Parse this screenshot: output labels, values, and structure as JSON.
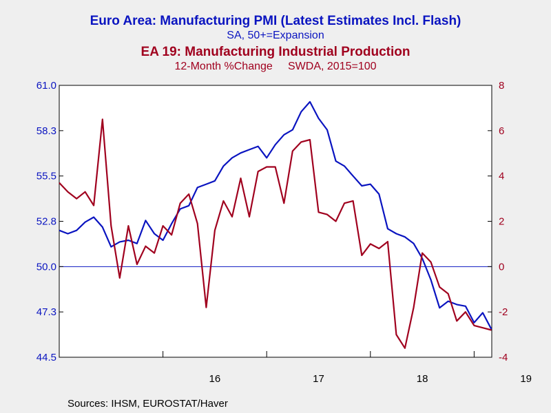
{
  "colors": {
    "pmi": "#0a14c0",
    "ip": "#a0001e",
    "background": "#efefef",
    "plot": "#ffffff"
  },
  "chart_data": {
    "type": "line",
    "titles": [
      "Euro Area: Manufacturing PMI (Latest Estimates Incl. Flash)",
      "SA, 50+=Expansion",
      "EA 19: Manufacturing Industrial Production",
      "12-Month %Change     SWDA, 2015=100"
    ],
    "left_axis": {
      "min": 44.5,
      "max": 61.0,
      "ticks": [
        "61.0",
        "58.3",
        "55.5",
        "52.8",
        "50.0",
        "47.3",
        "44.5"
      ],
      "tick_values": [
        61.0,
        58.25,
        55.5,
        52.75,
        50.0,
        47.25,
        44.5
      ]
    },
    "right_axis": {
      "min": -4,
      "max": 8,
      "ticks": [
        "8",
        "6",
        "4",
        "2",
        "0",
        "-2",
        "-4"
      ],
      "tick_values": [
        8,
        6,
        4,
        2,
        0,
        -2,
        -4
      ]
    },
    "x_ticks": [
      "16",
      "17",
      "18",
      "19"
    ],
    "x_tick_values": [
      2016.5,
      2017.5,
      2018.5,
      2019.5
    ],
    "x_range": [
      2015.0,
      2019.17
    ],
    "reference_line_left": 50.0,
    "series": [
      {
        "axis": "left",
        "x": [
          2015.0,
          2015.083,
          2015.167,
          2015.25,
          2015.333,
          2015.417,
          2015.5,
          2015.583,
          2015.667,
          2015.75,
          2015.833,
          2015.917,
          2016.0,
          2016.083,
          2016.167,
          2016.25,
          2016.333,
          2016.417,
          2016.5,
          2016.583,
          2016.667,
          2016.75,
          2016.833,
          2016.917,
          2017.0,
          2017.083,
          2017.167,
          2017.25,
          2017.333,
          2017.417,
          2017.5,
          2017.583,
          2017.667,
          2017.75,
          2017.833,
          2017.917,
          2018.0,
          2018.083,
          2018.167,
          2018.25,
          2018.333,
          2018.417,
          2018.5,
          2018.583,
          2018.667,
          2018.75,
          2018.833,
          2018.917,
          2019.0,
          2019.083,
          2019.167
        ],
        "values": [
          52.2,
          52.0,
          52.2,
          52.7,
          53.0,
          52.4,
          51.2,
          51.5,
          51.6,
          51.4,
          52.8,
          52.0,
          51.6,
          52.6,
          53.5,
          53.7,
          54.8,
          55.0,
          55.2,
          56.1,
          56.6,
          56.9,
          57.1,
          57.3,
          56.6,
          57.4,
          58.0,
          58.3,
          59.4,
          60.0,
          59.0,
          58.3,
          56.4,
          56.1,
          55.5,
          54.9,
          55.0,
          54.4,
          52.3,
          52.0,
          51.8,
          51.4,
          50.5,
          49.2,
          47.5,
          47.9,
          47.7,
          47.6,
          46.6,
          47.2,
          46.2
        ]
      },
      {
        "axis": "right",
        "x": [
          2015.0,
          2015.083,
          2015.167,
          2015.25,
          2015.333,
          2015.417,
          2015.5,
          2015.583,
          2015.667,
          2015.75,
          2015.833,
          2015.917,
          2016.0,
          2016.083,
          2016.167,
          2016.25,
          2016.333,
          2016.417,
          2016.5,
          2016.583,
          2016.667,
          2016.75,
          2016.833,
          2016.917,
          2017.0,
          2017.083,
          2017.167,
          2017.25,
          2017.333,
          2017.417,
          2017.5,
          2017.583,
          2017.667,
          2017.75,
          2017.833,
          2017.917,
          2018.0,
          2018.083,
          2018.167,
          2018.25,
          2018.333,
          2018.417,
          2018.5,
          2018.583,
          2018.667,
          2018.75,
          2018.833,
          2018.917,
          2019.0,
          2019.083,
          2019.167
        ],
        "values": [
          3.7,
          3.3,
          3.0,
          3.3,
          2.7,
          6.5,
          1.8,
          -0.5,
          1.8,
          0.1,
          0.9,
          0.6,
          1.8,
          1.4,
          2.8,
          3.2,
          1.9,
          -1.8,
          1.6,
          2.9,
          2.2,
          3.9,
          2.2,
          4.2,
          4.4,
          4.4,
          2.8,
          5.1,
          5.5,
          5.6,
          2.4,
          2.3,
          2.0,
          2.8,
          2.9,
          0.5,
          1.0,
          0.8,
          1.1,
          -3.0,
          -3.6,
          -1.8,
          0.6,
          0.2,
          -0.9,
          -1.2,
          -2.4,
          -2.0,
          -2.6,
          -2.7,
          -2.8
        ]
      }
    ]
  },
  "footer": {
    "sources": "Sources:  IHSM, EUROSTAT/Haver"
  }
}
